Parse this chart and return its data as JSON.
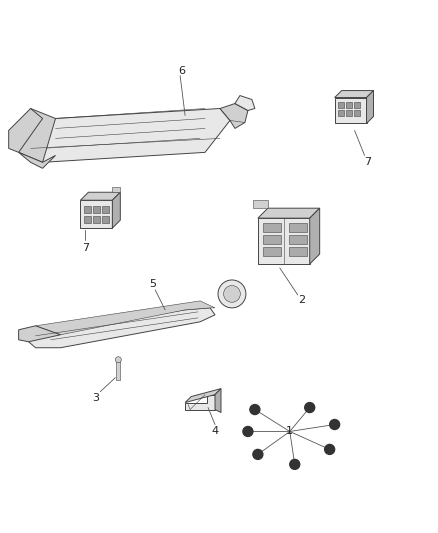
{
  "background_color": "#ffffff",
  "fig_width": 4.38,
  "fig_height": 5.33,
  "dpi": 100,
  "line_color": "#555555",
  "edge_color": "#444444",
  "fill_light": "#e8e8e8",
  "fill_mid": "#d0d0d0",
  "fill_dark": "#b0b0b0",
  "text_color": "#222222",
  "lw_main": 0.7,
  "lw_thin": 0.4,
  "lw_leader": 0.6
}
